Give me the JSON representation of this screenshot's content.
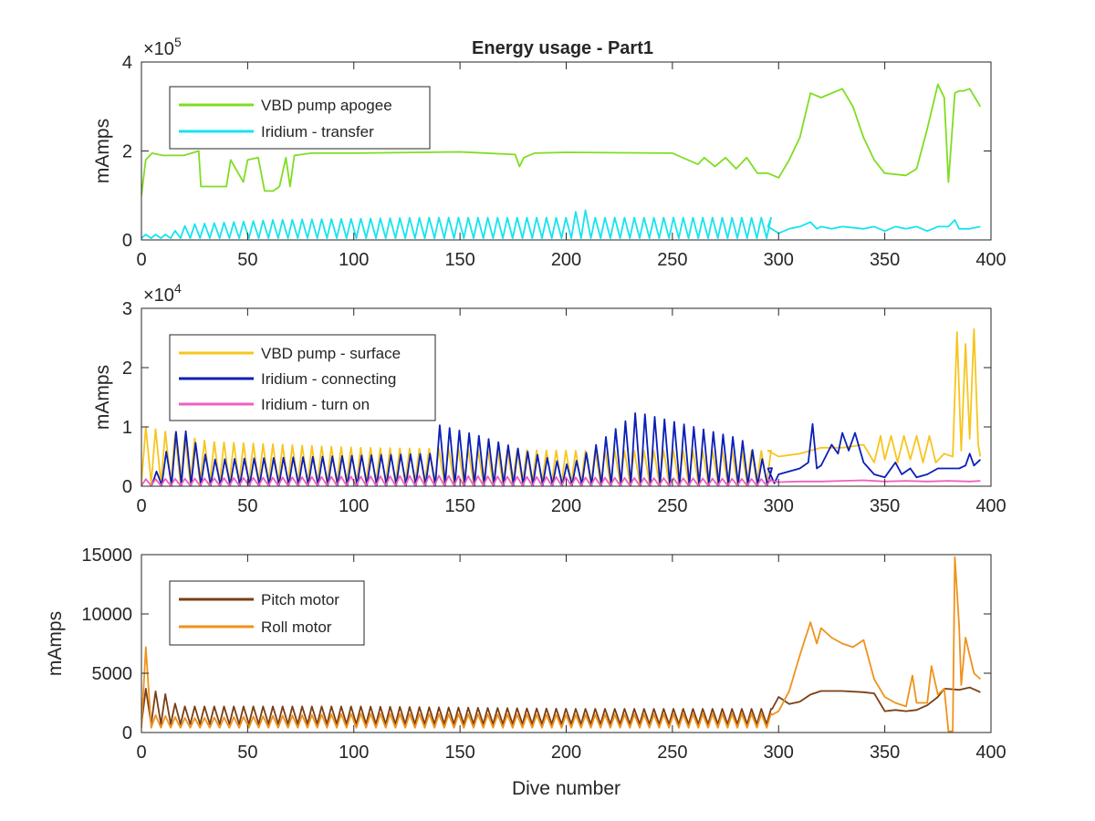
{
  "chart_data": [
    {
      "type": "line",
      "title": "Energy usage - Part1",
      "xlabel": "",
      "ylabel": "mAmps",
      "exponent": "×10",
      "exponent_power": "5",
      "xlim": [
        0,
        400
      ],
      "ylim": [
        0,
        4
      ],
      "xticks": [
        0,
        50,
        100,
        150,
        200,
        250,
        300,
        350,
        400
      ],
      "yticks": [
        0,
        2,
        4
      ],
      "xtick_labels": [
        "0",
        "50",
        "100",
        "150",
        "200",
        "250",
        "300",
        "350",
        "400"
      ],
      "ytick_labels": [
        "0",
        "2",
        "4"
      ],
      "legend": "top-left",
      "series": [
        {
          "name": "VBD pump apogee",
          "color": "#7fdd22",
          "x": [
            0,
            2,
            5,
            10,
            20,
            27,
            28,
            30,
            35,
            40,
            42,
            48,
            50,
            55,
            58,
            62,
            65,
            68,
            70,
            72,
            80,
            100,
            150,
            176,
            178,
            180,
            185,
            200,
            250,
            262,
            265,
            270,
            275,
            280,
            285,
            290,
            295,
            300,
            305,
            310,
            315,
            320,
            330,
            335,
            340,
            345,
            350,
            360,
            365,
            370,
            375,
            378,
            380,
            383,
            385,
            387,
            390,
            395
          ],
          "y": [
            1.0,
            1.8,
            1.95,
            1.9,
            1.9,
            2.0,
            1.2,
            1.2,
            1.2,
            1.2,
            1.8,
            1.3,
            1.8,
            1.85,
            1.1,
            1.1,
            1.2,
            1.85,
            1.2,
            1.9,
            1.95,
            1.95,
            1.98,
            1.92,
            1.65,
            1.85,
            1.95,
            1.97,
            1.95,
            1.7,
            1.85,
            1.65,
            1.85,
            1.6,
            1.85,
            1.5,
            1.5,
            1.4,
            1.8,
            2.3,
            3.3,
            3.2,
            3.4,
            3.0,
            2.3,
            1.8,
            1.5,
            1.45,
            1.6,
            2.5,
            3.5,
            3.2,
            1.3,
            3.3,
            3.35,
            3.35,
            3.4,
            3.0
          ]
        },
        {
          "name": "Iridium - transfer",
          "color": "#16e4ee",
          "style": "spiky",
          "x_start": 0,
          "x_end": 395,
          "period": 4.6,
          "base": 0.04,
          "peaks": [
            [
              10,
              0.12
            ],
            [
              20,
              0.35
            ],
            [
              60,
              0.45
            ],
            [
              130,
              0.5
            ],
            [
              200,
              0.5
            ],
            [
              205,
              0.78
            ],
            [
              210,
              0.5
            ],
            [
              295,
              0.5
            ]
          ],
          "tail": [
            [
              295,
              0.3
            ],
            [
              300,
              0.15
            ],
            [
              305,
              0.25
            ],
            [
              310,
              0.3
            ],
            [
              315,
              0.4
            ],
            [
              318,
              0.25
            ],
            [
              320,
              0.3
            ],
            [
              325,
              0.25
            ],
            [
              330,
              0.3
            ],
            [
              340,
              0.25
            ],
            [
              345,
              0.3
            ],
            [
              350,
              0.2
            ],
            [
              355,
              0.3
            ],
            [
              360,
              0.25
            ],
            [
              365,
              0.3
            ],
            [
              370,
              0.2
            ],
            [
              375,
              0.3
            ],
            [
              380,
              0.3
            ],
            [
              383,
              0.45
            ],
            [
              385,
              0.25
            ],
            [
              390,
              0.25
            ],
            [
              395,
              0.3
            ]
          ]
        }
      ]
    },
    {
      "type": "line",
      "title": "",
      "xlabel": "",
      "ylabel": "mAmps",
      "exponent": "×10",
      "exponent_power": "4",
      "xlim": [
        0,
        400
      ],
      "ylim": [
        0,
        3
      ],
      "xticks": [
        0,
        50,
        100,
        150,
        200,
        250,
        300,
        350,
        400
      ],
      "yticks": [
        0,
        1,
        2,
        3
      ],
      "xtick_labels": [
        "0",
        "50",
        "100",
        "150",
        "200",
        "250",
        "300",
        "350",
        "400"
      ],
      "ytick_labels": [
        "0",
        "1",
        "2",
        "3"
      ],
      "legend": "top-left",
      "series": [
        {
          "name": "VBD pump - surface",
          "color": "#f7c51e",
          "style": "spiky",
          "x_start": 0,
          "x_end": 395,
          "period": 4.6,
          "base": 0.05,
          "peaks": [
            [
              0,
              1.0
            ],
            [
              12,
              0.9
            ],
            [
              30,
              0.75
            ],
            [
              100,
              0.65
            ],
            [
              200,
              0.6
            ],
            [
              295,
              0.6
            ]
          ],
          "tail": [
            [
              295,
              0.6
            ],
            [
              300,
              0.5
            ],
            [
              310,
              0.55
            ],
            [
              315,
              0.6
            ],
            [
              320,
              0.65
            ],
            [
              330,
              0.65
            ],
            [
              340,
              0.7
            ],
            [
              345,
              0.4
            ],
            [
              348,
              0.85
            ],
            [
              350,
              0.45
            ],
            [
              353,
              0.85
            ],
            [
              356,
              0.4
            ],
            [
              359,
              0.85
            ],
            [
              362,
              0.45
            ],
            [
              365,
              0.85
            ],
            [
              368,
              0.4
            ],
            [
              371,
              0.85
            ],
            [
              374,
              0.4
            ],
            [
              378,
              0.55
            ],
            [
              382,
              0.5
            ],
            [
              384,
              2.6
            ],
            [
              386,
              0.6
            ],
            [
              388,
              2.4
            ],
            [
              390,
              0.8
            ],
            [
              392,
              2.65
            ],
            [
              394,
              0.7
            ],
            [
              395,
              0.5
            ]
          ]
        },
        {
          "name": "Iridium - connecting",
          "color": "#0b1fb8",
          "style": "spiky",
          "x_start": 5,
          "x_end": 395,
          "period": 4.6,
          "base": 0.02,
          "peaks": [
            [
              5,
              0.25
            ],
            [
              16,
              1.05
            ],
            [
              30,
              0.45
            ],
            [
              135,
              0.55
            ],
            [
              136,
              1.05
            ],
            [
              157,
              0.85
            ],
            [
              200,
              0.35
            ],
            [
              231,
              1.25
            ],
            [
              280,
              0.8
            ],
            [
              295,
              0.3
            ]
          ],
          "tail": [
            [
              295,
              0.3
            ],
            [
              298,
              0.05
            ],
            [
              300,
              0.2
            ],
            [
              305,
              0.25
            ],
            [
              310,
              0.3
            ],
            [
              314,
              0.4
            ],
            [
              316,
              1.05
            ],
            [
              318,
              0.3
            ],
            [
              320,
              0.35
            ],
            [
              325,
              0.7
            ],
            [
              328,
              0.55
            ],
            [
              330,
              0.9
            ],
            [
              333,
              0.6
            ],
            [
              336,
              0.9
            ],
            [
              340,
              0.4
            ],
            [
              345,
              0.2
            ],
            [
              350,
              0.15
            ],
            [
              355,
              0.4
            ],
            [
              358,
              0.2
            ],
            [
              362,
              0.3
            ],
            [
              365,
              0.15
            ],
            [
              370,
              0.2
            ],
            [
              375,
              0.3
            ],
            [
              380,
              0.3
            ],
            [
              385,
              0.3
            ],
            [
              388,
              0.35
            ],
            [
              390,
              0.55
            ],
            [
              392,
              0.35
            ],
            [
              395,
              0.45
            ]
          ]
        },
        {
          "name": "Iridium - turn on",
          "color": "#f05fbe",
          "style": "spiky",
          "x_start": 0,
          "x_end": 395,
          "period": 4.6,
          "base": 0.01,
          "peaks": [
            [
              0,
              0.12
            ],
            [
              135,
              0.18
            ],
            [
              200,
              0.15
            ],
            [
              295,
              0.12
            ]
          ],
          "tail": [
            [
              295,
              0.1
            ],
            [
              300,
              0.07
            ],
            [
              310,
              0.08
            ],
            [
              320,
              0.08
            ],
            [
              330,
              0.09
            ],
            [
              340,
              0.1
            ],
            [
              350,
              0.08
            ],
            [
              360,
              0.09
            ],
            [
              370,
              0.08
            ],
            [
              380,
              0.09
            ],
            [
              390,
              0.08
            ],
            [
              395,
              0.09
            ]
          ]
        }
      ]
    },
    {
      "type": "line",
      "title": "",
      "xlabel": "Dive number",
      "ylabel": "mAmps",
      "xlim": [
        0,
        400
      ],
      "ylim": [
        0,
        15000
      ],
      "xticks": [
        0,
        50,
        100,
        150,
        200,
        250,
        300,
        350,
        400
      ],
      "yticks": [
        0,
        5000,
        10000,
        15000
      ],
      "xtick_labels": [
        "0",
        "50",
        "100",
        "150",
        "200",
        "250",
        "300",
        "350",
        "400"
      ],
      "ytick_labels": [
        "0",
        "5000",
        "10000",
        "15000"
      ],
      "legend": "top-left",
      "series": [
        {
          "name": "Pitch motor",
          "color": "#7a3e14",
          "style": "spiky",
          "x_start": 0,
          "x_end": 297,
          "period": 4.6,
          "base": 700,
          "peaks": [
            [
              0,
              3700
            ],
            [
              10,
              3200
            ],
            [
              15,
              2200
            ],
            [
              100,
              2200
            ],
            [
              200,
              2000
            ],
            [
              297,
              2000
            ]
          ],
          "tail": [
            [
              297,
              2000
            ],
            [
              300,
              3000
            ],
            [
              305,
              2400
            ],
            [
              310,
              2600
            ],
            [
              315,
              3200
            ],
            [
              320,
              3500
            ],
            [
              330,
              3500
            ],
            [
              340,
              3400
            ],
            [
              345,
              3300
            ],
            [
              350,
              1800
            ],
            [
              355,
              1900
            ],
            [
              360,
              1800
            ],
            [
              365,
              1900
            ],
            [
              370,
              2300
            ],
            [
              375,
              3000
            ],
            [
              378,
              3700
            ],
            [
              385,
              3600
            ],
            [
              390,
              3800
            ],
            [
              395,
              3400
            ]
          ]
        },
        {
          "name": "Roll motor",
          "color": "#f0921c",
          "style": "spiky",
          "x_start": 0,
          "x_end": 297,
          "period": 4.6,
          "base": 400,
          "peaks": [
            [
              0,
              7200
            ],
            [
              3,
              1500
            ],
            [
              20,
              1200
            ],
            [
              100,
              1600
            ],
            [
              200,
              1500
            ],
            [
              297,
              1600
            ]
          ],
          "tail": [
            [
              297,
              1500
            ],
            [
              300,
              1800
            ],
            [
              305,
              3500
            ],
            [
              310,
              6500
            ],
            [
              315,
              9300
            ],
            [
              318,
              7500
            ],
            [
              320,
              8800
            ],
            [
              325,
              8000
            ],
            [
              330,
              7500
            ],
            [
              335,
              7200
            ],
            [
              340,
              7800
            ],
            [
              345,
              4500
            ],
            [
              350,
              3000
            ],
            [
              355,
              2500
            ],
            [
              360,
              2200
            ],
            [
              363,
              4800
            ],
            [
              365,
              2500
            ],
            [
              370,
              2500
            ],
            [
              372,
              5600
            ],
            [
              375,
              3200
            ],
            [
              378,
              3700
            ],
            [
              380,
              100
            ],
            [
              382,
              100
            ],
            [
              383,
              14800
            ],
            [
              385,
              9000
            ],
            [
              386,
              4000
            ],
            [
              388,
              8000
            ],
            [
              390,
              6500
            ],
            [
              392,
              5000
            ],
            [
              395,
              4500
            ]
          ]
        }
      ]
    }
  ]
}
